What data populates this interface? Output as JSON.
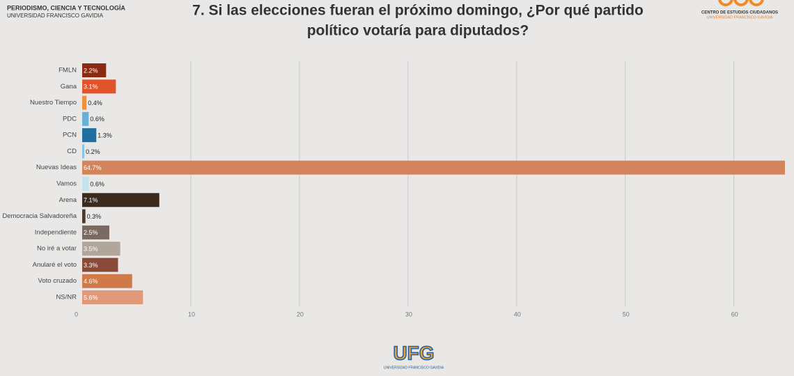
{
  "chart_data": {
    "type": "bar",
    "orientation": "horizontal",
    "title": [
      "7. Si las elecciones fueran el próximo domingo, ¿Por qué partido",
      "político votaría para diputados?"
    ],
    "categories": [
      "FMLN",
      "Gana",
      "Nuestro Tiempo",
      "PDC",
      "PCN",
      "CD",
      "Nuevas Ideas",
      "Vamos",
      "Arena",
      "Democracia Salvadoreña",
      "Independiente",
      "No iré a votar",
      "Anularé el voto",
      "Voto cruzado",
      "NS/NR"
    ],
    "values": [
      2.2,
      3.1,
      0.4,
      0.6,
      1.3,
      0.2,
      64.7,
      0.6,
      7.1,
      0.3,
      2.5,
      3.5,
      3.3,
      4.6,
      5.6
    ],
    "value_labels": [
      "2.2%",
      "3.1%",
      "0.4%",
      "0.6%",
      "1.3%",
      "0.2%",
      "64.7%",
      "0.6%",
      "7.1%",
      "0.3%",
      "2.5%",
      "3.5%",
      "3.3%",
      "4.6%",
      "5.6%"
    ],
    "colors": [
      "#8b2a12",
      "#e0532b",
      "#f0913a",
      "#6baed6",
      "#1f6fa0",
      "#8cc4e8",
      "#d4845a",
      "#c6e2ef",
      "#3b2a1e",
      "#4a3a30",
      "#7a6a62",
      "#b0a69c",
      "#8a4a38",
      "#d07a4a",
      "#e09a7a"
    ],
    "xlim": [
      0,
      64.7
    ],
    "xticks": [
      0,
      10,
      20,
      30,
      40,
      50,
      60
    ],
    "grid": true
  },
  "logos": {
    "left": [
      "PERIODISMO, CIENCIA Y TECNOLOGÍA",
      "UNIVERSIDAD FRANCISCO GAVIDIA"
    ],
    "right": [
      "CENTRO DE ESTUDIOS CIUDADANOS",
      "UNIVERSIDAD FRANCISCO GAVIDIA"
    ],
    "bottom": [
      "UFG",
      "UNIVERSIDAD FRANCISCO GAVIDIA"
    ]
  }
}
